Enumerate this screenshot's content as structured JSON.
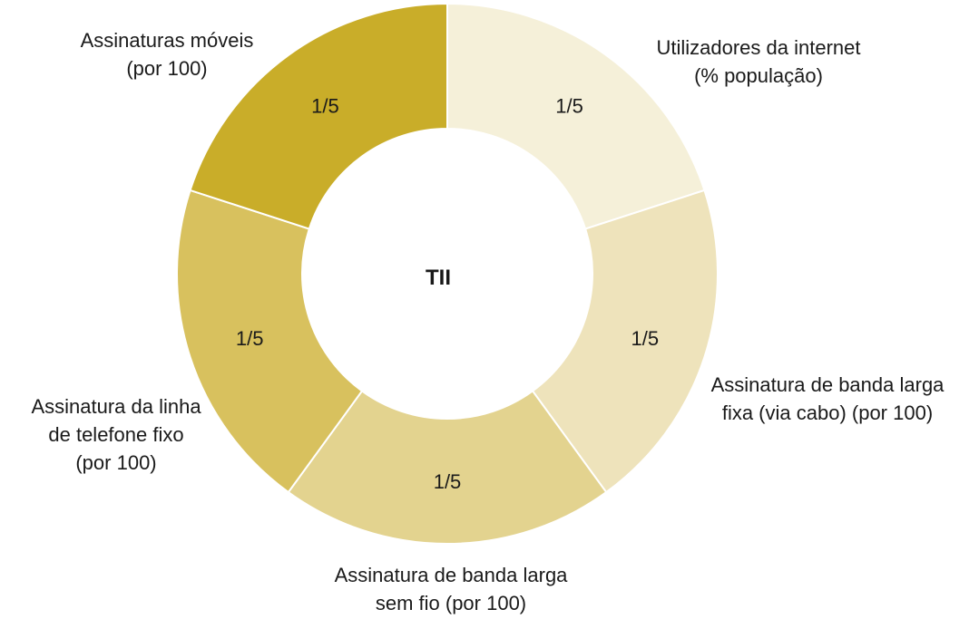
{
  "chart_data": {
    "type": "pie",
    "center_label": "TII",
    "categories": [
      "Utilizadores da internet (% população)",
      "Assinatura de banda larga fixa (via cabo) (por 100)",
      "Assinatura de banda larga sem fio (por 100)",
      "Assinatura da linha de telefone fixo (por 100)",
      "Assinaturas móveis (por 100)"
    ],
    "values": [
      0.2,
      0.2,
      0.2,
      0.2,
      0.2
    ],
    "data_labels": [
      "1/5",
      "1/5",
      "1/5",
      "1/5",
      "1/5"
    ],
    "category_lines": [
      [
        "Utilizadores da internet",
        "(% população)"
      ],
      [
        "Assinatura de banda larga",
        "fixa (via cabo) (por 100)"
      ],
      [
        "Assinatura de banda larga",
        "sem fio (por 100)"
      ],
      [
        "Assinatura da linha",
        "de telefone fixo",
        "(por 100)"
      ],
      [
        "Assinaturas móveis",
        "(por 100)"
      ]
    ],
    "colors": [
      "#f5f0d9",
      "#eee3bb",
      "#e3d38f",
      "#d8c15e",
      "#c9ad29"
    ]
  }
}
